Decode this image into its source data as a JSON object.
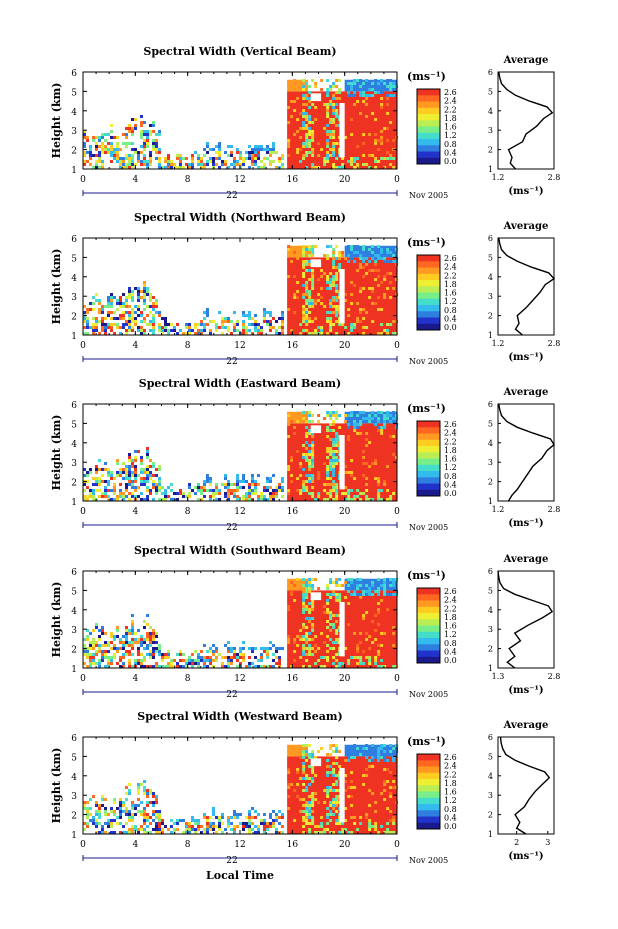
{
  "figure": {
    "xlabel": "Local Time",
    "day_label": "22",
    "date_label": "Nov 2005",
    "colorbar_unit": "(ms⁻¹)",
    "colorbar_ticks": [
      "2.6",
      "2.4",
      "2.2",
      "1.8",
      "1.6",
      "1.2",
      "0.8",
      "0.4",
      "0.0"
    ],
    "average_title": "Average",
    "average_xlabel": "(ms⁻¹)",
    "colors": [
      "#1a1a8c",
      "#2233cc",
      "#2f7fe0",
      "#33bbee",
      "#44ddcc",
      "#77ee88",
      "#bbee55",
      "#eeee33",
      "#ffcc22",
      "#ff9922",
      "#ff6622",
      "#ee3322"
    ]
  },
  "chart_data": [
    {
      "type": "heatmap",
      "title": "Spectral Width (Vertical Beam)",
      "ylabel": "Height (km)",
      "xlim": [
        0,
        24
      ],
      "ylim": [
        1,
        6
      ],
      "xticks": [
        "0",
        "4",
        "8",
        "12",
        "16",
        "20",
        "0"
      ],
      "yticks": [
        "1",
        "2",
        "3",
        "4",
        "5",
        "6"
      ],
      "colorbar_range": [
        0,
        2.6
      ],
      "average": {
        "title": "Average",
        "xlim": [
          1.2,
          2.8
        ],
        "xticks": [
          "1.2",
          "2.8"
        ],
        "ylim": [
          1,
          6
        ],
        "height_km": [
          1.0,
          1.3,
          1.6,
          2.0,
          2.4,
          2.8,
          3.2,
          3.6,
          3.9,
          4.2,
          4.5,
          4.8,
          5.1,
          5.4,
          5.7,
          6.0
        ],
        "width_ms": [
          1.7,
          1.55,
          1.6,
          1.5,
          1.9,
          2.0,
          2.3,
          2.5,
          2.75,
          2.6,
          2.1,
          1.7,
          1.45,
          1.3,
          1.25,
          1.22
        ]
      }
    },
    {
      "type": "heatmap",
      "title": "Spectral Width (Northward Beam)",
      "ylabel": "Height (km)",
      "xlim": [
        0,
        24
      ],
      "ylim": [
        1,
        6
      ],
      "xticks": [
        "0",
        "4",
        "8",
        "12",
        "16",
        "20",
        "0"
      ],
      "yticks": [
        "1",
        "2",
        "3",
        "4",
        "5",
        "6"
      ],
      "colorbar_range": [
        0,
        2.6
      ],
      "average": {
        "title": "Average",
        "xlim": [
          1.2,
          2.8
        ],
        "xticks": [
          "1.2",
          "2.8"
        ],
        "ylim": [
          1,
          6
        ],
        "height_km": [
          1.0,
          1.3,
          1.6,
          2.0,
          2.4,
          2.8,
          3.2,
          3.6,
          3.9,
          4.2,
          4.5,
          4.8,
          5.1,
          5.4,
          5.7,
          6.0
        ],
        "width_ms": [
          1.9,
          1.7,
          1.8,
          1.75,
          2.0,
          2.2,
          2.4,
          2.55,
          2.8,
          2.65,
          2.15,
          1.75,
          1.45,
          1.3,
          1.25,
          1.22
        ]
      }
    },
    {
      "type": "heatmap",
      "title": "Spectral Width (Eastward Beam)",
      "ylabel": "Height (km)",
      "xlim": [
        0,
        24
      ],
      "ylim": [
        1,
        6
      ],
      "xticks": [
        "0",
        "4",
        "8",
        "12",
        "16",
        "20",
        "0"
      ],
      "yticks": [
        "1",
        "2",
        "3",
        "4",
        "5",
        "6"
      ],
      "colorbar_range": [
        0,
        2.6
      ],
      "average": {
        "title": "Average",
        "xlim": [
          1.2,
          2.8
        ],
        "xticks": [
          "1.2",
          "2.8"
        ],
        "ylim": [
          1,
          6
        ],
        "height_km": [
          1.0,
          1.3,
          1.6,
          2.0,
          2.4,
          2.8,
          3.2,
          3.6,
          3.9,
          4.2,
          4.5,
          4.8,
          5.1,
          5.4,
          5.7,
          6.0
        ],
        "width_ms": [
          1.5,
          1.6,
          1.75,
          1.9,
          2.05,
          2.2,
          2.45,
          2.6,
          2.8,
          2.7,
          2.2,
          1.75,
          1.45,
          1.3,
          1.25,
          1.22
        ]
      }
    },
    {
      "type": "heatmap",
      "title": "Spectral Width (Southward Beam)",
      "ylabel": "Height (km)",
      "xlim": [
        0,
        24
      ],
      "ylim": [
        1,
        6
      ],
      "xticks": [
        "0",
        "4",
        "8",
        "12",
        "16",
        "20",
        "0"
      ],
      "yticks": [
        "1",
        "2",
        "3",
        "4",
        "5",
        "6"
      ],
      "colorbar_range": [
        0,
        2.6
      ],
      "average": {
        "title": "Average",
        "xlim": [
          1.3,
          2.8
        ],
        "xticks": [
          "1.3",
          "2.8"
        ],
        "ylim": [
          1,
          6
        ],
        "height_km": [
          1.0,
          1.3,
          1.6,
          2.0,
          2.4,
          2.8,
          3.2,
          3.6,
          3.9,
          4.2,
          4.5,
          4.8,
          5.1,
          5.4,
          5.7,
          6.0
        ],
        "width_ms": [
          1.75,
          1.55,
          1.75,
          1.6,
          1.9,
          1.75,
          2.1,
          2.5,
          2.75,
          2.65,
          2.2,
          1.75,
          1.45,
          1.35,
          1.32,
          1.3
        ]
      }
    },
    {
      "type": "heatmap",
      "title": "Spectral Width (Westward Beam)",
      "ylabel": "Height (km)",
      "xlim": [
        0,
        24
      ],
      "ylim": [
        1,
        6
      ],
      "xticks": [
        "0",
        "4",
        "8",
        "12",
        "16",
        "20",
        "0"
      ],
      "yticks": [
        "1",
        "2",
        "3",
        "4",
        "5",
        "6"
      ],
      "colorbar_range": [
        0,
        2.6
      ],
      "average": {
        "title": "Average",
        "xlim": [
          1.4,
          3.2
        ],
        "xticks": [
          "2",
          "3"
        ],
        "ylim": [
          1,
          6
        ],
        "height_km": [
          1.0,
          1.3,
          1.6,
          2.0,
          2.4,
          2.8,
          3.2,
          3.6,
          3.9,
          4.2,
          4.5,
          4.8,
          5.1,
          5.4,
          5.7,
          6.0
        ],
        "width_ms": [
          2.3,
          2.0,
          2.1,
          1.95,
          2.25,
          2.4,
          2.6,
          2.85,
          3.05,
          2.9,
          2.4,
          1.95,
          1.65,
          1.55,
          1.5,
          1.48
        ]
      }
    }
  ]
}
